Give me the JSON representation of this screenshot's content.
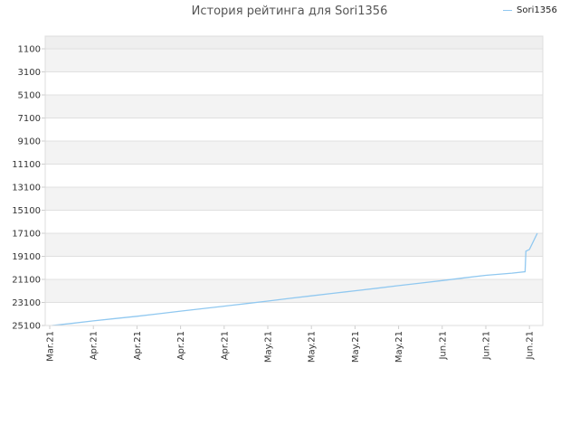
{
  "chart_data": {
    "type": "line",
    "title": "История рейтинга для Sori1356",
    "legend_position": "top-right",
    "grid": true,
    "y_inverted": true,
    "ylim": [
      1100,
      25100
    ],
    "yticks": [
      1100,
      3100,
      5100,
      7100,
      9100,
      11100,
      13100,
      15100,
      17100,
      19100,
      21100,
      23100,
      25100
    ],
    "xticks": [
      "Mar.21",
      "Apr.21",
      "Apr.21",
      "Apr.21",
      "Apr.21",
      "May.21",
      "May.21",
      "May.21",
      "May.21",
      "Jun.21",
      "Jun.21",
      "Jun.21"
    ],
    "series": [
      {
        "name": "Sori1356",
        "color": "#90c8f0",
        "x": [
          0.05,
          0.5,
          1.0,
          1.5,
          2.0,
          2.5,
          3.0,
          3.5,
          4.0,
          4.5,
          5.0,
          5.5,
          6.0,
          6.5,
          7.0,
          7.5,
          8.0,
          8.5,
          9.0,
          9.5,
          10.0,
          10.6,
          10.9,
          10.92,
          11.0,
          11.18
        ],
        "y": [
          25100,
          24920,
          24700,
          24500,
          24300,
          24080,
          23850,
          23640,
          23420,
          23200,
          22980,
          22750,
          22530,
          22310,
          22090,
          21870,
          21640,
          21420,
          21200,
          20970,
          20750,
          20560,
          20430,
          18650,
          18500,
          17100
        ]
      }
    ]
  }
}
